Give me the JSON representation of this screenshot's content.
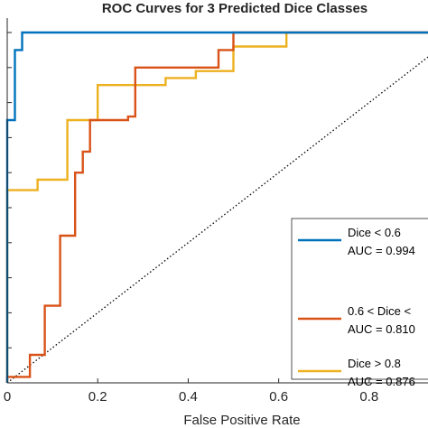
{
  "chart_data": {
    "type": "line",
    "title": "ROC Curves for 3 Predicted Dice Classes",
    "xlabel": "False Positive Rate",
    "ylabel": "",
    "xlim": [
      0,
      0.93
    ],
    "ylim": [
      0,
      1.0
    ],
    "xticks": [
      0,
      0.2,
      0.4,
      0.6,
      0.8
    ],
    "x_tick_labels": [
      "0",
      "0.2",
      "0.4",
      "0.6",
      "0.8"
    ],
    "grid": false,
    "legend_position": "bottom-right (cropped)",
    "chance_line": {
      "x": [
        0,
        1
      ],
      "y": [
        0,
        1
      ],
      "style": "dotted",
      "color": "#000000"
    },
    "series": [
      {
        "name": "Dice < 0.6",
        "auc_label": "AUC = 0.994",
        "color": "#0072BD",
        "x": [
          0,
          0,
          0.017,
          0.017,
          0.033,
          0.033,
          1.0
        ],
        "y": [
          0,
          0.75,
          0.75,
          0.95,
          0.95,
          1.0,
          1.0
        ]
      },
      {
        "name": "0.6 < Dice <",
        "auc_label": "AUC = 0.810",
        "color": "#D95319",
        "x": [
          0,
          0,
          0.05,
          0.05,
          0.05,
          0.083,
          0.083,
          0.083,
          0.117,
          0.117,
          0.15,
          0.15,
          0.167,
          0.167,
          0.183,
          0.183,
          0.267,
          0.267,
          0.283,
          0.283,
          0.467,
          0.467,
          0.5,
          0.5,
          1.0
        ],
        "y": [
          0,
          0.017,
          0.017,
          0.04,
          0.08,
          0.08,
          0.22,
          0.22,
          0.22,
          0.42,
          0.42,
          0.6,
          0.6,
          0.66,
          0.66,
          0.75,
          0.75,
          0.76,
          0.76,
          0.9,
          0.9,
          0.95,
          0.95,
          1.0,
          1.0
        ]
      },
      {
        "name": "Dice > 0.8",
        "auc_label": "AUC = 0.876",
        "color": "#EDB120",
        "x": [
          0,
          0,
          0.067,
          0.067,
          0.133,
          0.133,
          0.2,
          0.2,
          0.35,
          0.35,
          0.417,
          0.417,
          0.5,
          0.5,
          0.617,
          0.617,
          1.0
        ],
        "y": [
          0,
          0.55,
          0.55,
          0.58,
          0.58,
          0.75,
          0.75,
          0.85,
          0.85,
          0.87,
          0.87,
          0.89,
          0.89,
          0.96,
          0.96,
          1.0,
          1.0
        ]
      }
    ]
  }
}
